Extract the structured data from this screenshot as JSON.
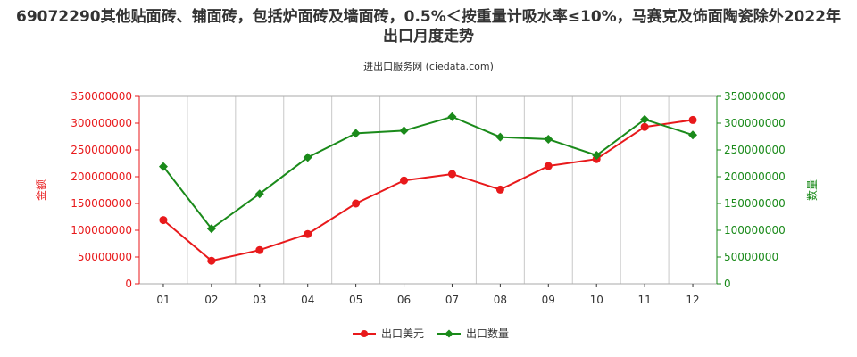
{
  "title": "69072290其他贴面砖、铺面砖，包括炉面砖及墙面砖，0.5%＜按重量计吸水率≤10%，马赛克及饰面陶瓷除外2022年出口月度走势",
  "subtitle": "进出口服务网 (ciedata.com)",
  "colors": {
    "export_value": "#e8191b",
    "export_quantity": "#1a8a1a",
    "grid": "#c8c8c8"
  },
  "chart_data": {
    "type": "line",
    "categories": [
      "01",
      "02",
      "03",
      "04",
      "05",
      "06",
      "07",
      "08",
      "09",
      "10",
      "11",
      "12"
    ],
    "ylabel_left": "金额",
    "ylabel_right": "数量",
    "ylim_left": [
      0,
      350000000
    ],
    "ylim_right": [
      0,
      350000000
    ],
    "yticks_left": [
      "0",
      "50000000",
      "100000000",
      "150000000",
      "200000000",
      "250000000",
      "300000000",
      "350000000"
    ],
    "yticks_right": [
      "0",
      "50000000",
      "100000000",
      "150000000",
      "200000000",
      "250000000",
      "300000000",
      "350000000"
    ],
    "grid": "vertical",
    "legend_position": "bottom",
    "series": [
      {
        "name": "出口美元",
        "axis": "left",
        "marker": "circle",
        "color": "#e8191b",
        "values": [
          119000000,
          43000000,
          63000000,
          93000000,
          150000000,
          193000000,
          205000000,
          176000000,
          220000000,
          233000000,
          293000000,
          306000000
        ]
      },
      {
        "name": "出口数量",
        "axis": "right",
        "marker": "diamond",
        "color": "#1a8a1a",
        "values": [
          219000000,
          103000000,
          168000000,
          236000000,
          281000000,
          286000000,
          312000000,
          274000000,
          270000000,
          240000000,
          307000000,
          278000000
        ]
      }
    ]
  }
}
